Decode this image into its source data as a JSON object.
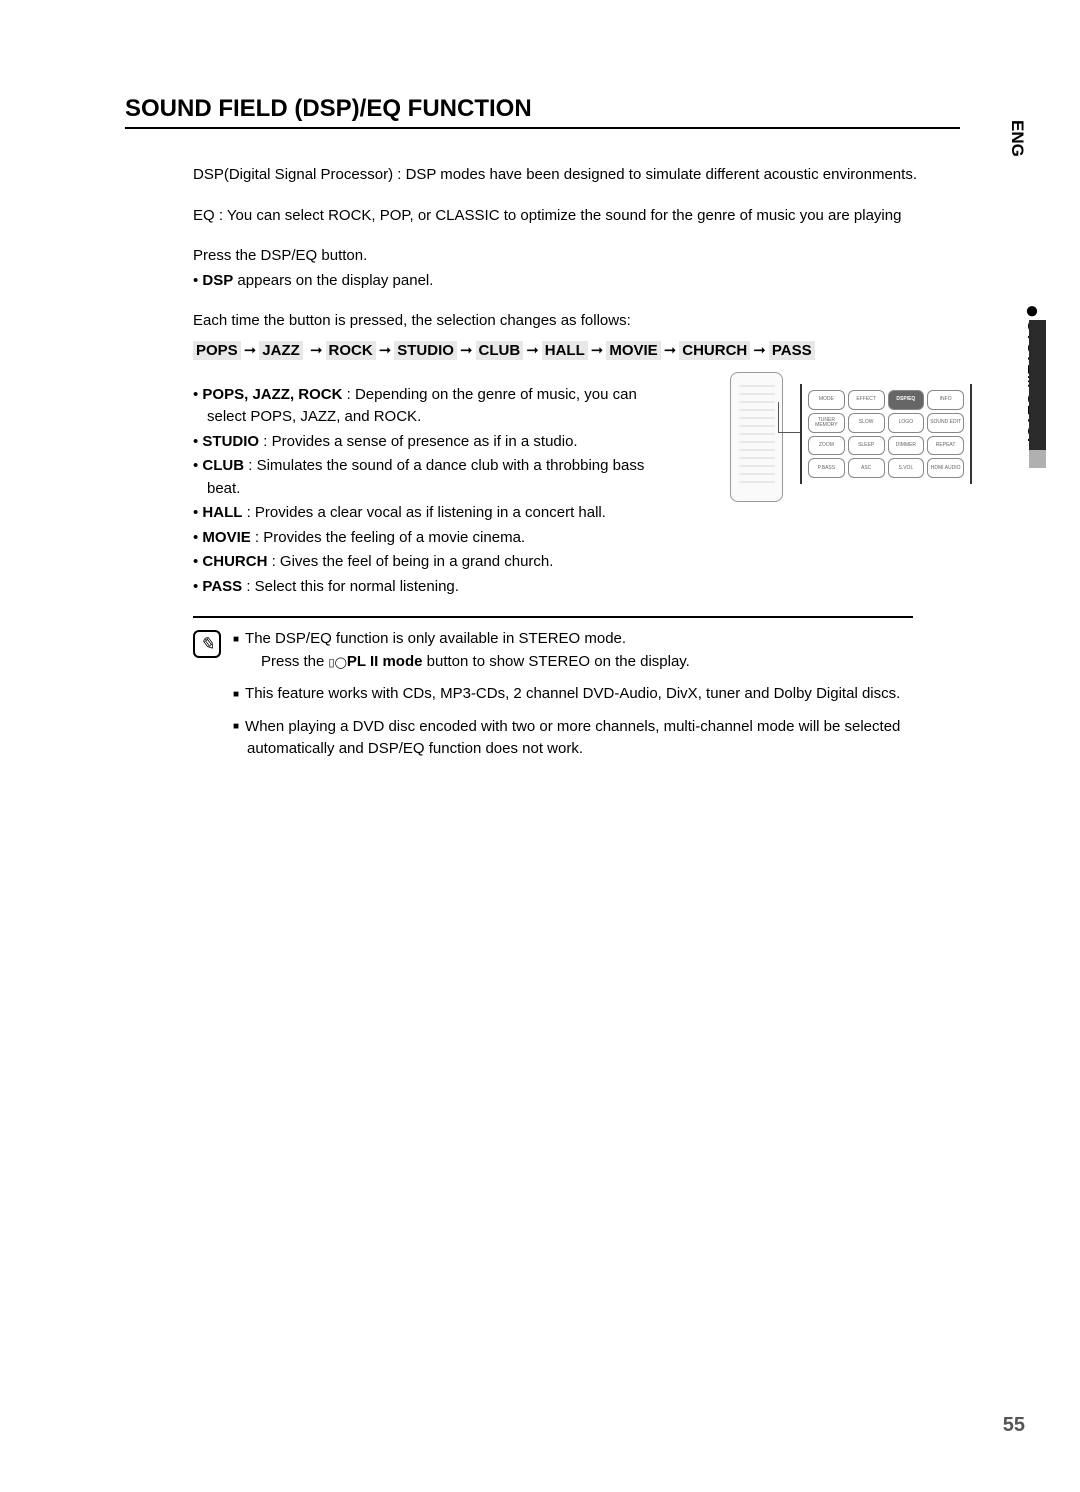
{
  "sectionTitle": "SOUND FIELD (DSP)/EQ FUNCTION",
  "intro1": "DSP(Digital Signal Processor) : DSP modes have been designed to simulate different acoustic environments.",
  "intro2": "EQ : You can select ROCK, POP, or CLASSIC to optimize the sound for the genre of music you are playing",
  "pressInstruction": "Press the DSP/EQ button.",
  "dspBold": "DSP",
  "dspRest": " appears on the display panel.",
  "eachTime": "Each time the button is pressed, the selection changes as follows:",
  "sequence": [
    "POPS",
    "JAZZ",
    "ROCK",
    "STUDIO",
    "CLUB",
    "HALL",
    "MOVIE",
    "CHURCH",
    "PASS"
  ],
  "modes": [
    {
      "label": "POPS, JAZZ, ROCK",
      "desc": " : Depending on the genre of music, you can select POPS, JAZZ, and ROCK."
    },
    {
      "label": "STUDIO",
      "desc": " : Provides a sense of presence as if in a studio."
    },
    {
      "label": "CLUB",
      "desc": " : Simulates the sound of a dance club with a throbbing bass beat."
    },
    {
      "label": "HALL",
      "desc": " : Provides a clear vocal as if listening in a concert hall."
    },
    {
      "label": "MOVIE",
      "desc": " : Provides the feeling of a movie cinema."
    },
    {
      "label": "CHURCH",
      "desc": " : Gives the feel of being in a grand church."
    },
    {
      "label": "PASS",
      "desc": " : Select this for normal listening."
    }
  ],
  "notes": [
    {
      "line1": "The DSP/EQ function is only available in STEREO mode.",
      "line2a": "Press the ",
      "line2b": "PL II mode",
      "line2c": " button to show STEREO on the display."
    },
    {
      "line1": "This feature works with CDs, MP3-CDs, 2 channel DVD-Audio, DivX, tuner and Dolby Digital discs."
    },
    {
      "line1": "When playing a DVD disc encoded with two or more channels, multi-channel mode will be selected automatically and DSP/EQ function does not work."
    }
  ],
  "langLabel": "ENG",
  "sideTab": "SYSTEM SETUP",
  "pageNumber": "55",
  "panelButtons": {
    "r1": [
      "MODE",
      "EFFECT",
      "DSP/EQ",
      "INFO"
    ],
    "r2": [
      "TUNER MEMORY",
      "SLOW",
      "LOGO",
      "SOUND EDIT"
    ],
    "r2b": [
      "MO/ST",
      "STEP"
    ],
    "r3": [
      "ZOOM",
      "SLEEP",
      "DIMMER",
      "REPEAT"
    ],
    "r4": [
      "P.BASS",
      "ASC",
      "S.VOL",
      "HDMI AUDIO"
    ]
  }
}
